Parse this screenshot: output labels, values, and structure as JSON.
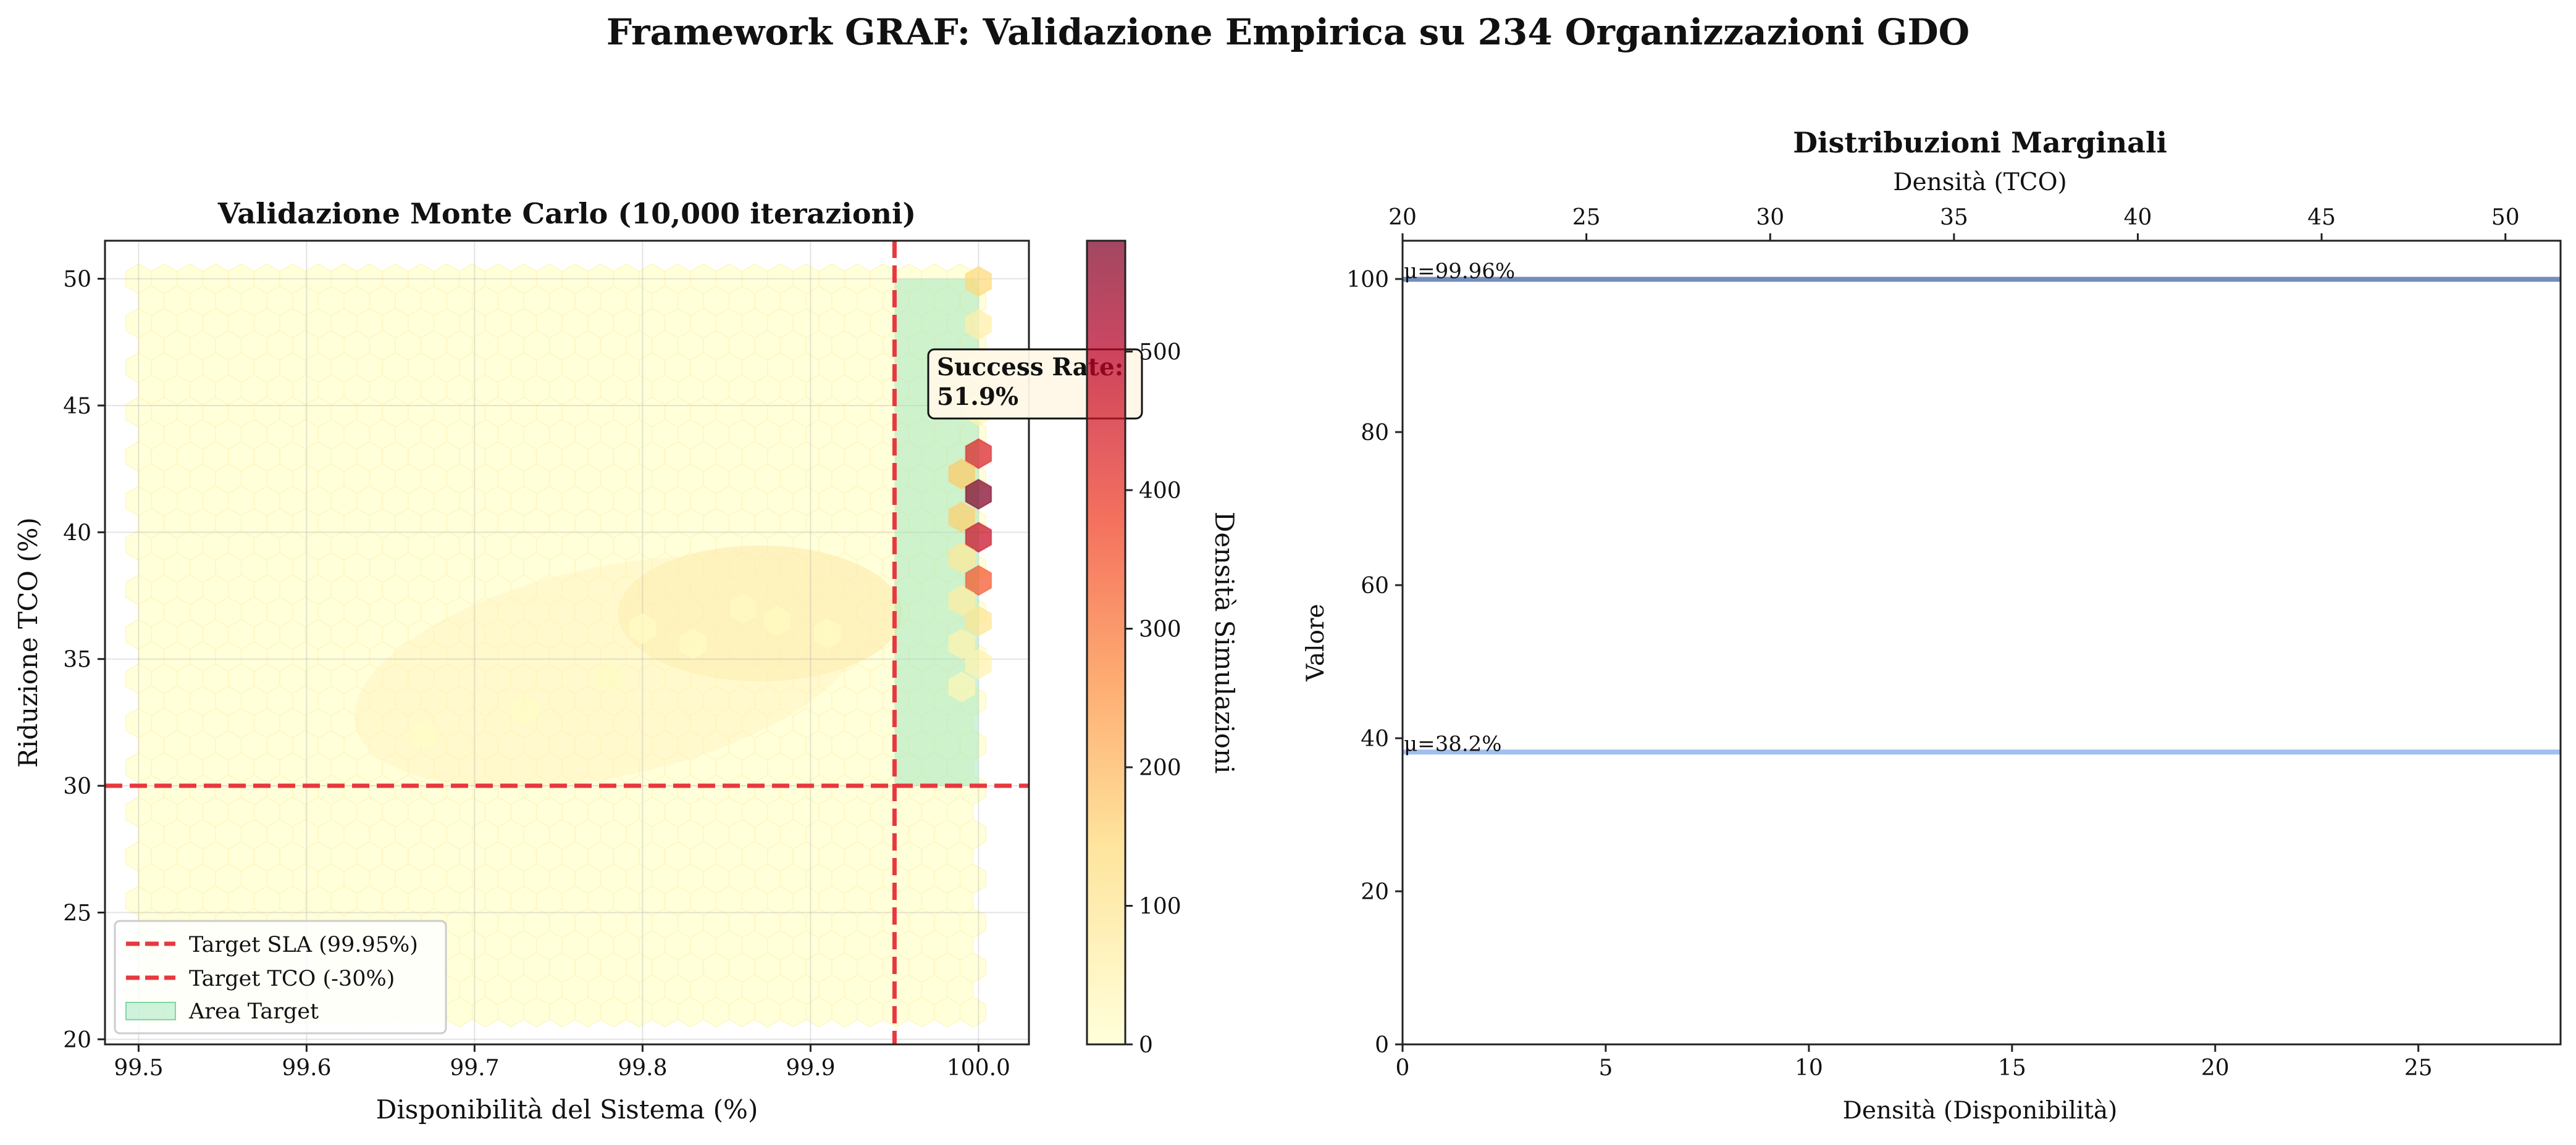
{
  "suptitle": "Framework GRAF: Validazione Empirica su 234 Organizzazioni GDO",
  "chart_data": [
    {
      "type": "heatmap",
      "subtype": "hexbin",
      "title": "Validazione Monte Carlo (10,000 iterazioni)",
      "xlabel": "Disponibilità del Sistema (%)",
      "ylabel": "Riduzione TCO (%)",
      "xlim": [
        99.48,
        100.03
      ],
      "ylim": [
        19.8,
        51.5
      ],
      "xticks": [
        "99.5",
        "99.6",
        "99.7",
        "99.8",
        "99.9",
        "100.0"
      ],
      "yticks": [
        "20",
        "25",
        "30",
        "35",
        "40",
        "45",
        "50"
      ],
      "grid": true,
      "colormap": "YlOrRd",
      "colorbar": {
        "label": "Densità Simulazioni",
        "min": 0,
        "max": 580,
        "ticks": [
          "0",
          "100",
          "200",
          "300",
          "400",
          "500"
        ]
      },
      "thresholds": {
        "sla_x": 99.95,
        "tco_y": 30
      },
      "target_area": {
        "x": [
          99.95,
          100.0
        ],
        "y": [
          30,
          50
        ]
      },
      "hexbins": [
        {
          "x": 100.0,
          "y": 49.9,
          "count": 140
        },
        {
          "x": 100.0,
          "y": 48.2,
          "count": 60
        },
        {
          "x": 100.0,
          "y": 46.5,
          "count": 40
        },
        {
          "x": 100.0,
          "y": 44.8,
          "count": 50
        },
        {
          "x": 100.0,
          "y": 43.1,
          "count": 430
        },
        {
          "x": 99.99,
          "y": 42.3,
          "count": 170
        },
        {
          "x": 100.0,
          "y": 41.5,
          "count": 580
        },
        {
          "x": 99.99,
          "y": 40.6,
          "count": 160
        },
        {
          "x": 100.0,
          "y": 39.8,
          "count": 470
        },
        {
          "x": 99.99,
          "y": 39.0,
          "count": 90
        },
        {
          "x": 100.0,
          "y": 38.1,
          "count": 340
        },
        {
          "x": 99.99,
          "y": 37.3,
          "count": 70
        },
        {
          "x": 100.0,
          "y": 36.5,
          "count": 100
        },
        {
          "x": 99.99,
          "y": 35.6,
          "count": 50
        },
        {
          "x": 100.0,
          "y": 34.8,
          "count": 45
        },
        {
          "x": 99.99,
          "y": 33.9,
          "count": 35
        },
        {
          "x": 99.86,
          "y": 37.0,
          "count": 18
        },
        {
          "x": 99.88,
          "y": 36.5,
          "count": 22
        },
        {
          "x": 99.83,
          "y": 35.6,
          "count": 16
        },
        {
          "x": 99.78,
          "y": 34.3,
          "count": 14
        },
        {
          "x": 99.73,
          "y": 33.0,
          "count": 12
        },
        {
          "x": 99.67,
          "y": 32.0,
          "count": 10
        },
        {
          "x": 99.91,
          "y": 36.0,
          "count": 16
        },
        {
          "x": 99.8,
          "y": 36.2,
          "count": 12
        }
      ],
      "annotation": "Success Rate:\n51.9%",
      "annotation_lines": [
        "Success Rate:",
        "51.9%"
      ],
      "legend": {
        "placement": "lower-left",
        "entries": [
          {
            "label": "Target SLA (99.95%)",
            "color": "#e8383f",
            "style": "dashed-line"
          },
          {
            "label": "Target TCO (-30%)",
            "color": "#e8383f",
            "style": "dashed-line"
          },
          {
            "label": "Area Target",
            "color": "#a6e8bf",
            "style": "patch"
          }
        ]
      }
    },
    {
      "type": "line",
      "title": "Distribuzioni Marginali",
      "xlabel": "Densità (Disponibilità)",
      "x2label": "Densità (TCO)",
      "ylabel": "Valore",
      "xlim": [
        0,
        28.5
      ],
      "x2lim": [
        20,
        51.5
      ],
      "ylim": [
        0,
        105
      ],
      "xticks": [
        "0",
        "5",
        "10",
        "15",
        "20",
        "25"
      ],
      "x2ticks": [
        "20",
        "25",
        "30",
        "35",
        "40",
        "45",
        "50"
      ],
      "yticks": [
        "0",
        "20",
        "40",
        "60",
        "80",
        "100"
      ],
      "series": [
        {
          "axis": "bottom",
          "color": "#5b78b0",
          "x": [
            0,
            28.5
          ],
          "y": [
            99.96,
            99.96
          ]
        },
        {
          "axis": "top",
          "color": "#8eb3ee",
          "x": [
            20,
            51.5
          ],
          "y": [
            38.2,
            38.2
          ]
        }
      ],
      "annotations": [
        {
          "text": "μ=99.96%",
          "x": 0,
          "y": 99.96
        },
        {
          "text": "μ=38.2%",
          "x": 0,
          "y": 38.2
        }
      ]
    }
  ]
}
